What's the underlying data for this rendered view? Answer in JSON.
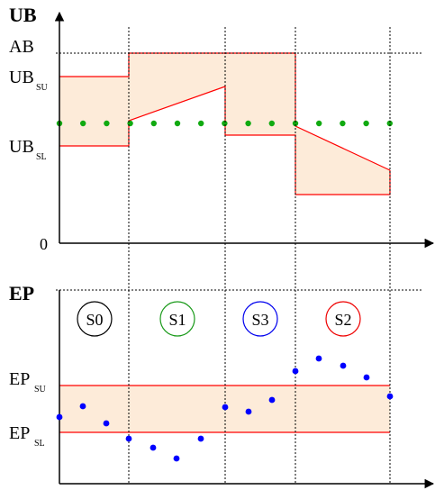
{
  "top_panel": {
    "axis_label": "UB",
    "ab_label": "AB",
    "ubsu_main": "UB",
    "ubsu_sub": "SU",
    "ubsl_main": "UB",
    "ubsl_sub": "SL",
    "zero_label": "0"
  },
  "bottom_panel": {
    "axis_label": "EP",
    "epsu_main": "EP",
    "epsu_sub": "SU",
    "epsl_main": "EP",
    "epsl_sub": "SL"
  },
  "states": [
    {
      "label": "S0",
      "color": "#000000"
    },
    {
      "label": "S1",
      "color": "#1a9a1a"
    },
    {
      "label": "S3",
      "color": "#0000ee"
    },
    {
      "label": "S2",
      "color": "#ee0000"
    }
  ],
  "colors": {
    "band_fill": "#fdebd9",
    "band_stroke": "#ff0000",
    "green_dots": "#11aa11",
    "blue_dots": "#0000ff"
  }
}
